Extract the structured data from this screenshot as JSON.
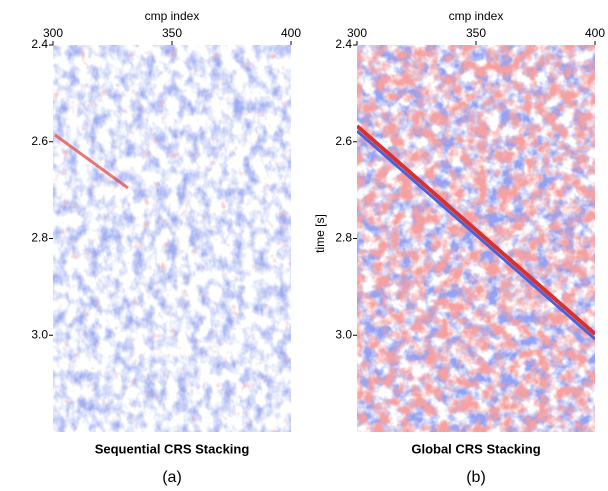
{
  "chart_data": [
    {
      "type": "seismic",
      "x_label": "cmp index",
      "caption": "Sequential CRS Stacking",
      "panel": "(a)",
      "xlim": [
        300,
        400
      ],
      "xticks": [
        300,
        350,
        400
      ],
      "ylim": [
        2.4,
        3.2
      ],
      "yticks": [
        2.4,
        2.6,
        2.8,
        {
          "value": 3.0,
          "label": "3.0"
        }
      ]
    },
    {
      "type": "seismic",
      "x_label": "cmp index",
      "y_label": "time [s]",
      "caption": "Global CRS Stacking",
      "panel": "(b)",
      "xlim": [
        300,
        400
      ],
      "xticks": [
        300,
        350,
        400
      ],
      "ylim": [
        2.4,
        3.2
      ],
      "yticks": [
        2.4,
        2.6,
        2.8,
        {
          "value": 3.0,
          "label": "3.0"
        }
      ]
    }
  ]
}
